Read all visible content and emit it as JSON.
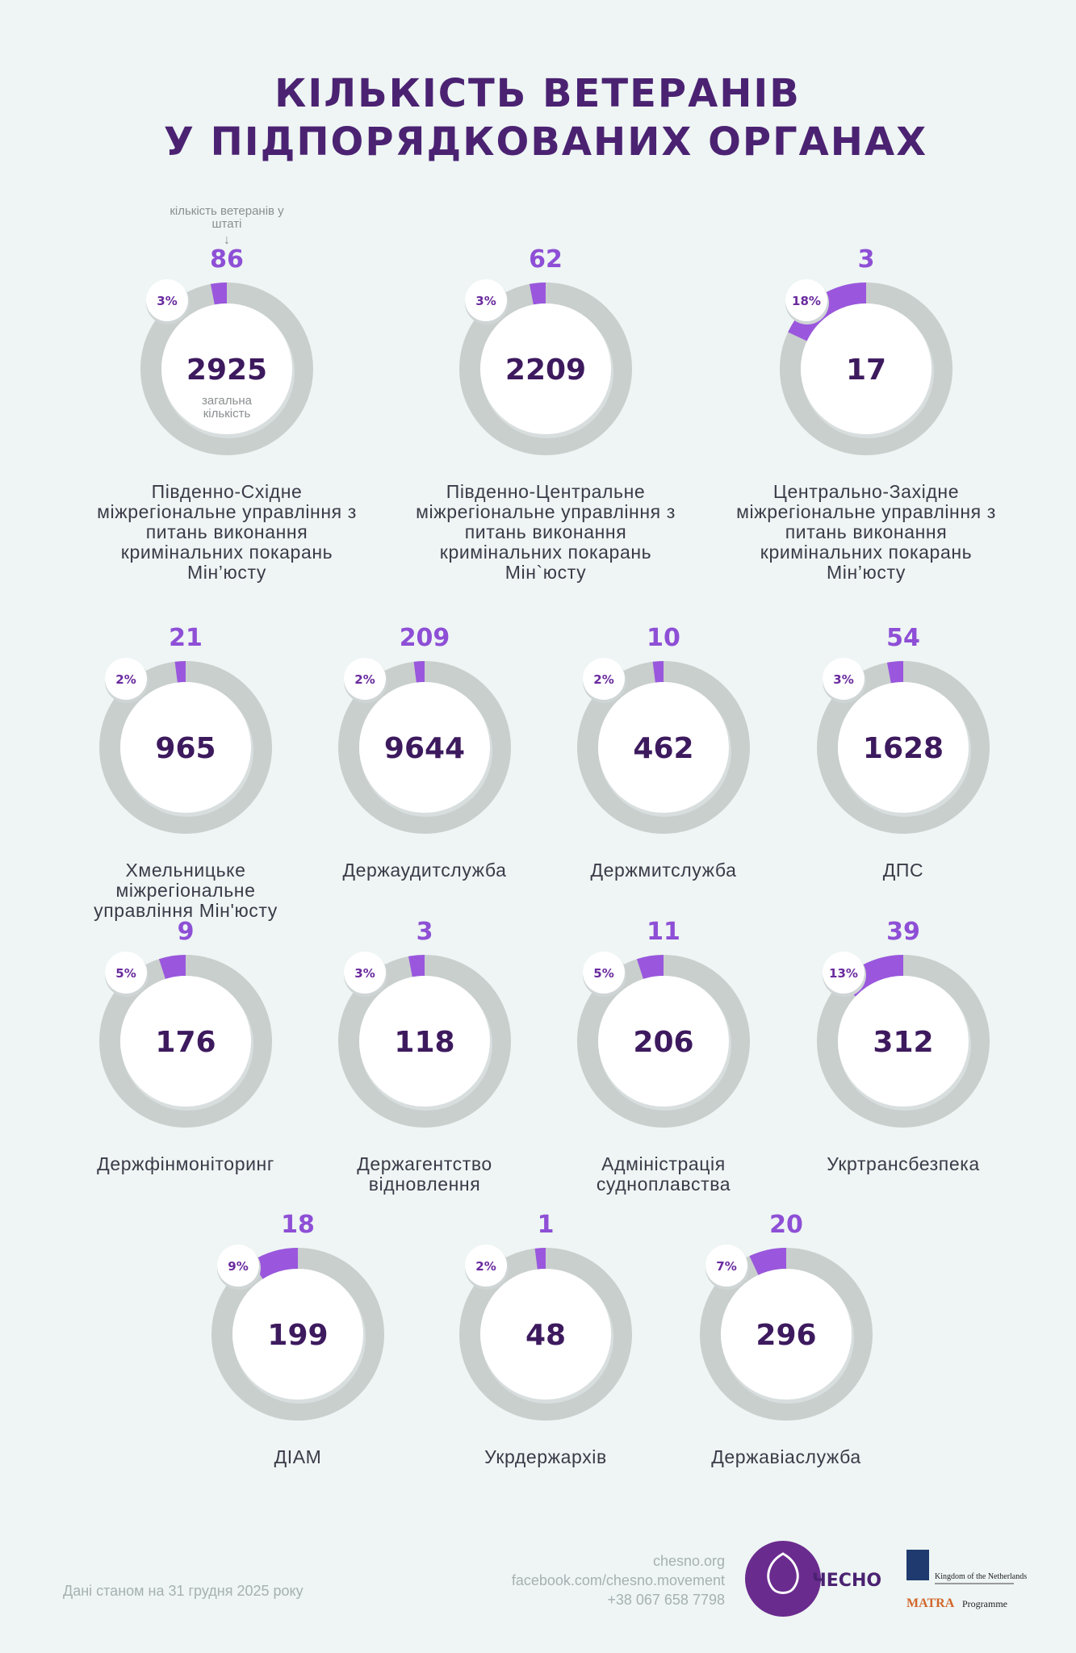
{
  "chart_data": {
    "type": "donut",
    "title": [
      "КІЛЬКІСТЬ ВЕТЕРАНІВ",
      "У ПІДПОРЯДКОВАНИХ ОРГАНАХ"
    ],
    "annotations": {
      "veterans": "кількість ветеранів у штаті",
      "total": "загальна кількість"
    },
    "categories": [
      "Південно-Східне міжрегіональне управління з питань виконання кримінальних покарань Мін’юсту",
      "Південно-Центральне міжрегіональне управління з питань виконання кримінальних покарань Мін`юсту",
      "Центрально-Західне міжрегіональне управління з питань виконання кримінальних покарань Мін’юсту",
      "Хмельницьке міжрегіональне управління Мін'юсту",
      "Держаудитслужба",
      "Держмитслужба",
      "ДПС",
      "Держфінмоніторинг",
      "Держагентство відновлення",
      "Адміністрація судноплавства",
      "Укртрансбезпека",
      "ДІАМ",
      "Укрдержархів",
      "Державіаслужба"
    ],
    "veterans": [
      86,
      62,
      3,
      21,
      209,
      10,
      54,
      9,
      3,
      11,
      39,
      18,
      1,
      20
    ],
    "totals": [
      2925,
      2209,
      17,
      965,
      9644,
      462,
      1628,
      176,
      118,
      206,
      312,
      199,
      48,
      296
    ],
    "shares": [
      3,
      3,
      18,
      2,
      2,
      2,
      3,
      5,
      3,
      5,
      13,
      9,
      2,
      7
    ],
    "share_labels": [
      "3%",
      "3%",
      "18%",
      "2%",
      "2%",
      "2%",
      "3%",
      "5%",
      "3%",
      "5%",
      "13%",
      "9%",
      "2%",
      "7%"
    ],
    "colors": {
      "share": "#9a57dd",
      "ring": "#c9cfcd"
    }
  },
  "footer": {
    "note": "Дані станом на 31 грудня 2025 року",
    "contacts": [
      "chesno.org",
      "facebook.com/chesno.movement",
      "+38 067 658 7798"
    ],
    "logo": "ЧЕСНО",
    "partner": "Kingdom of the Netherlands",
    "programme_name": "MATRA",
    "programme": "Programme"
  }
}
